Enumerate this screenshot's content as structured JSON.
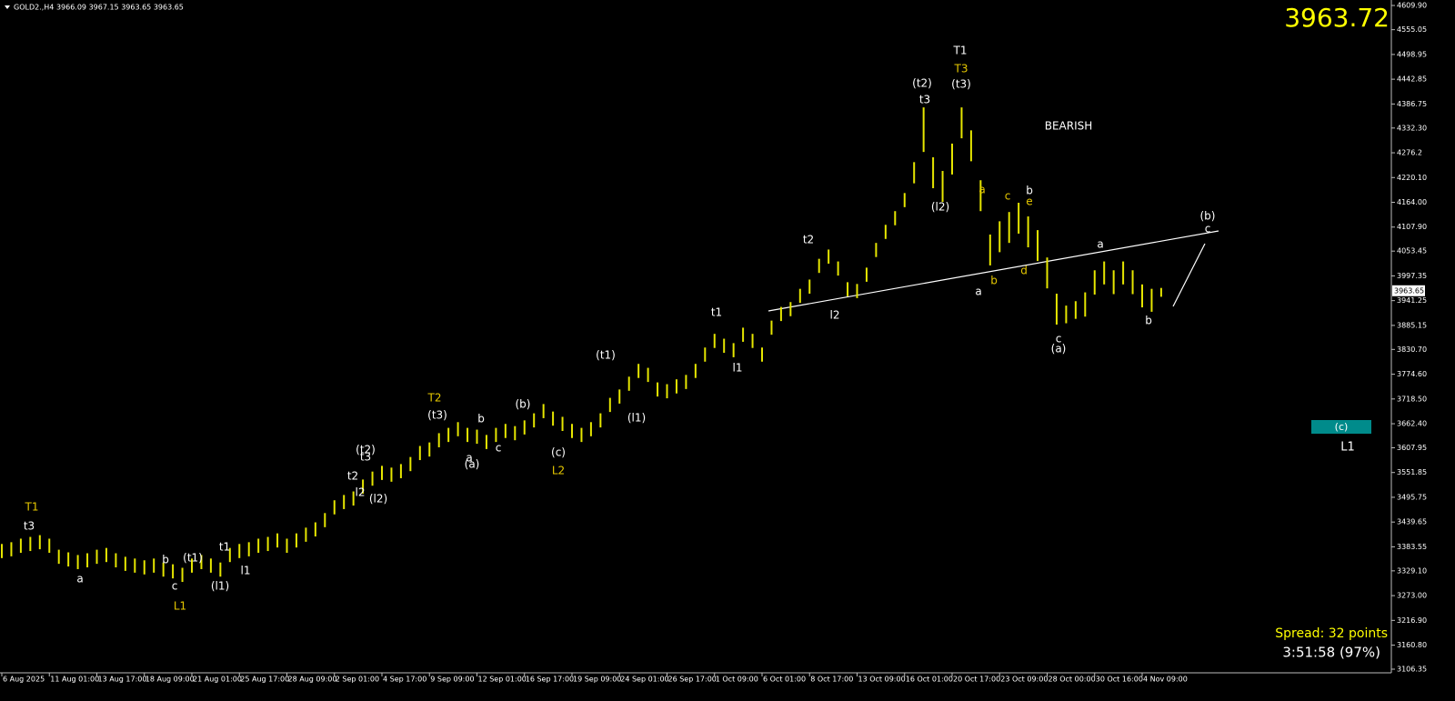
{
  "chart_data": {
    "type": "ohlc_range",
    "header": "GOLD2.,H4  3966.09 3967.15 3963.65 3963.65",
    "bid": "3963.72",
    "last": 3963.65,
    "color": "#e6e600",
    "ylim": [
      3073.4,
      4622.3
    ],
    "yticks": [
      {
        "value": 4609.9,
        "label": "4609.90"
      },
      4555.05,
      4498.95,
      4442.85,
      4386.75,
      {
        "value": 4332.3,
        "label": "4332.30"
      },
      4276.2,
      {
        "value": 4220.1,
        "label": "4220.10"
      },
      {
        "value": 4164,
        "label": "4164.00"
      },
      {
        "value": 4107.9,
        "label": "4107.90"
      },
      4053.45,
      3997.35,
      3941.25,
      3885.15,
      {
        "value": 3830.7,
        "label": "3830.70"
      },
      {
        "value": 3774.6,
        "label": "3774.60"
      },
      {
        "value": 3718.5,
        "label": "3718.50"
      },
      {
        "value": 3662.4,
        "label": "3662.40"
      },
      3607.95,
      3551.85,
      3495.75,
      3439.65,
      3383.55,
      {
        "value": 3329.1,
        "label": "3329.10"
      },
      {
        "value": 3273,
        "label": "3273.00"
      },
      {
        "value": 3216.9,
        "label": "3216.90"
      },
      {
        "value": 3160.8,
        "label": "3160.80"
      },
      3106.35
    ],
    "xticks": [
      {
        "value": 0,
        "label": "6 Aug 2025"
      },
      {
        "value": 5,
        "label": "11 Aug 01:00"
      },
      {
        "value": 10,
        "label": "13 Aug 17:00"
      },
      {
        "value": 15,
        "label": "18 Aug 09:00"
      },
      {
        "value": 20,
        "label": "21 Aug 01:00"
      },
      {
        "value": 25,
        "label": "25 Aug 17:00"
      },
      {
        "value": 30,
        "label": "28 Aug 09:00"
      },
      {
        "value": 35,
        "label": "2 Sep 01:00"
      },
      {
        "value": 40,
        "label": "4 Sep 17:00"
      },
      {
        "value": 45,
        "label": "9 Sep 09:00"
      },
      {
        "value": 50,
        "label": "12 Sep 01:00"
      },
      {
        "value": 55,
        "label": "16 Sep 17:00"
      },
      {
        "value": 60,
        "label": "19 Sep 09:00"
      },
      {
        "value": 65,
        "label": "24 Sep 01:00"
      },
      {
        "value": 70,
        "label": "26 Sep 17:00"
      },
      {
        "value": 75,
        "label": "1 Oct 09:00"
      },
      {
        "value": 80,
        "label": "6 Oct 01:00"
      },
      {
        "value": 85,
        "label": "8 Oct 17:00"
      },
      {
        "value": 90,
        "label": "13 Oct 09:00"
      },
      {
        "value": 95,
        "label": "16 Oct 01:00"
      },
      {
        "value": 100,
        "label": "20 Oct 17:00"
      },
      {
        "value": 105,
        "label": "23 Oct 09:00"
      },
      {
        "value": 110,
        "label": "28 Oct 00:00"
      },
      {
        "value": 115,
        "label": "30 Oct 16:00"
      },
      {
        "value": 120,
        "label": "4 Nov 09:00"
      }
    ],
    "high": [
      3390,
      3394,
      3402,
      3406,
      3410,
      3402,
      3377,
      3371,
      3365,
      3369,
      3377,
      3381,
      3369,
      3361,
      3357,
      3353,
      3357,
      3348,
      3344,
      3336,
      3357,
      3365,
      3357,
      3348,
      3381,
      3390,
      3394,
      3402,
      3406,
      3414,
      3402,
      3414,
      3427,
      3439,
      3460,
      3489,
      3501,
      3509,
      3536,
      3554,
      3567,
      3563,
      3571,
      3587,
      3612,
      3620,
      3641,
      3653,
      3666,
      3653,
      3649,
      3637,
      3653,
      3662,
      3657,
      3670,
      3686,
      3707,
      3690,
      3678,
      3662,
      3653,
      3666,
      3686,
      3721,
      3740,
      3769,
      3798,
      3789,
      3756,
      3752,
      3763,
      3773,
      3798,
      3835,
      3866,
      3855,
      3845,
      3880,
      3866,
      3835,
      3896,
      3927,
      3938,
      3968,
      3989,
      4036,
      4057,
      4030,
      3983,
      3979,
      4016,
      4072,
      4113,
      4144,
      4185,
      4255,
      4379,
      4266,
      4235,
      4297,
      4379,
      4327,
      4214,
      4091,
      4121,
      4142,
      4163,
      4132,
      4101,
      4039,
      3957,
      3930,
      3940,
      3960,
      4010,
      4030,
      4010,
      4030,
      4010,
      3978,
      3968,
      3970
    ],
    "low": [
      3358,
      3362,
      3370,
      3374,
      3378,
      3370,
      3345,
      3339,
      3333,
      3337,
      3345,
      3349,
      3337,
      3329,
      3325,
      3321,
      3325,
      3316,
      3312,
      3304,
      3325,
      3333,
      3325,
      3316,
      3349,
      3358,
      3362,
      3370,
      3374,
      3382,
      3370,
      3382,
      3395,
      3407,
      3428,
      3457,
      3469,
      3477,
      3504,
      3522,
      3535,
      3531,
      3539,
      3555,
      3580,
      3588,
      3609,
      3621,
      3634,
      3621,
      3617,
      3605,
      3621,
      3630,
      3625,
      3638,
      3654,
      3675,
      3658,
      3646,
      3630,
      3621,
      3634,
      3654,
      3689,
      3708,
      3737,
      3766,
      3757,
      3724,
      3720,
      3731,
      3741,
      3766,
      3803,
      3834,
      3823,
      3813,
      3848,
      3834,
      3803,
      3864,
      3895,
      3906,
      3936,
      3957,
      4004,
      4025,
      3998,
      3951,
      3947,
      3984,
      4040,
      4081,
      4112,
      4153,
      4207,
      4278,
      4196,
      4165,
      4227,
      4309,
      4257,
      4144,
      4021,
      4051,
      4072,
      4093,
      4062,
      4031,
      3969,
      3887,
      3890,
      3900,
      3905,
      3955,
      3978,
      3956,
      3978,
      3956,
      3926,
      3916,
      3950
    ],
    "annotations": [
      {
        "text": "T1",
        "color": "#e6c800"
      },
      {
        "text": "t3",
        "color": "#ffffff"
      },
      {
        "text": "a",
        "color": "#ffffff"
      },
      {
        "text": "b",
        "color": "#ffffff"
      },
      {
        "text": "c",
        "color": "#ffffff"
      },
      {
        "text": "(t1)",
        "color": "#ffffff"
      },
      {
        "text": "(l1)",
        "color": "#ffffff"
      },
      {
        "text": "L1",
        "color": "#e6c800"
      },
      {
        "text": "t1",
        "color": "#ffffff"
      },
      {
        "text": "l1",
        "color": "#ffffff"
      },
      {
        "text": "t2",
        "color": "#ffffff"
      },
      {
        "text": "l2",
        "color": "#ffffff"
      },
      {
        "text": "(t2)",
        "color": "#ffffff"
      },
      {
        "text": "t3",
        "color": "#ffffff"
      },
      {
        "text": "(l2)",
        "color": "#ffffff"
      },
      {
        "text": "T2",
        "color": "#e6c800"
      },
      {
        "text": "(t3)",
        "color": "#ffffff"
      },
      {
        "text": "a",
        "color": "#ffffff"
      },
      {
        "text": "(a)",
        "color": "#ffffff"
      },
      {
        "text": "b",
        "color": "#ffffff"
      },
      {
        "text": "c",
        "color": "#ffffff"
      },
      {
        "text": "(b)",
        "color": "#ffffff"
      },
      {
        "text": "(c)",
        "color": "#ffffff"
      },
      {
        "text": "L2",
        "color": "#e6c800"
      },
      {
        "text": "(t1)",
        "color": "#ffffff"
      },
      {
        "text": "(l1)",
        "color": "#ffffff"
      },
      {
        "text": "t1",
        "color": "#ffffff"
      },
      {
        "text": "l1",
        "color": "#ffffff"
      },
      {
        "text": "t2",
        "color": "#ffffff"
      },
      {
        "text": "l2",
        "color": "#ffffff"
      },
      {
        "text": "(t2)",
        "color": "#ffffff"
      },
      {
        "text": "t3",
        "color": "#ffffff"
      },
      {
        "text": "(l2)",
        "color": "#ffffff"
      },
      {
        "text": "T1",
        "color": "#ffffff"
      },
      {
        "text": "T3",
        "color": "#e6c800"
      },
      {
        "text": "(t3)",
        "color": "#ffffff"
      },
      {
        "text": "BEARISH",
        "color": "#ffffff"
      },
      {
        "text": "a",
        "color": "#e6c800"
      },
      {
        "text": "a",
        "color": "#ffffff"
      },
      {
        "text": "b",
        "color": "#e6c800"
      },
      {
        "text": "c",
        "color": "#e6c800"
      },
      {
        "text": "b",
        "color": "#ffffff"
      },
      {
        "text": "e",
        "color": "#e6c800"
      },
      {
        "text": "d",
        "color": "#e6c800"
      },
      {
        "text": "c",
        "color": "#ffffff"
      },
      {
        "text": "(a)",
        "color": "#ffffff"
      },
      {
        "text": "a",
        "color": "#ffffff"
      },
      {
        "text": "b",
        "color": "#ffffff"
      },
      {
        "text": "(b)",
        "color": "#ffffff"
      },
      {
        "text": "c",
        "color": "#ffffff"
      },
      {
        "text": "L1",
        "color": "#ffffff"
      }
    ],
    "box_label": "(c)",
    "spread": "Spread: 32 points",
    "timer": "3:51:58 (97%)"
  }
}
